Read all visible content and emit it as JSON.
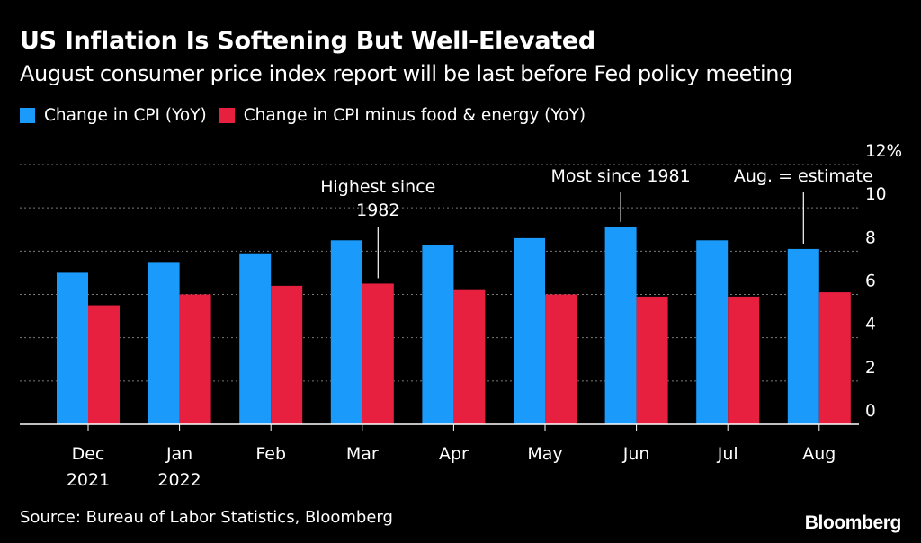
{
  "title": "US Inflation Is Softening But Well-Elevated",
  "subtitle": "August consumer price index report will be last before Fed policy meeting",
  "legend": [
    {
      "label": "Change in CPI (YoY)",
      "color": "#1a9bfc"
    },
    {
      "label": "Change in CPI minus food & energy (YoY)",
      "color": "#e8203f"
    }
  ],
  "source": "Source: Bureau of Labor Statistics, Bloomberg",
  "logo": "Bloomberg",
  "chart_data": {
    "type": "bar",
    "categories": [
      [
        "Dec",
        "2021"
      ],
      [
        "Jan",
        "2022"
      ],
      [
        "Feb"
      ],
      [
        "Mar"
      ],
      [
        "Apr"
      ],
      [
        "May"
      ],
      [
        "Jun"
      ],
      [
        "Jul"
      ],
      [
        "Aug"
      ]
    ],
    "series": [
      {
        "name": "Change in CPI (YoY)",
        "color": "#1a9bfc",
        "values": [
          7.0,
          7.5,
          7.9,
          8.5,
          8.3,
          8.6,
          9.1,
          8.5,
          8.1
        ]
      },
      {
        "name": "Change in CPI minus food & energy (YoY)",
        "color": "#e8203f",
        "values": [
          5.5,
          6.0,
          6.4,
          6.5,
          6.2,
          6.0,
          5.9,
          5.9,
          6.1
        ]
      }
    ],
    "ylim": [
      0,
      12
    ],
    "yticks": [
      "0",
      "2",
      "4",
      "6",
      "8",
      "10",
      "12%"
    ],
    "ytick_values": [
      0,
      2,
      4,
      6,
      8,
      10,
      12
    ],
    "y_axis_side": "right",
    "grid": true,
    "annotations": [
      {
        "lines": [
          "Highest since",
          "1982"
        ],
        "category_index": 3,
        "series_index": 1
      },
      {
        "lines": [
          "Most since 1981"
        ],
        "category_index": 6,
        "series_index": 0
      },
      {
        "lines": [
          "Aug. = estimate"
        ],
        "category_index": 8,
        "series_index": 0
      }
    ]
  }
}
